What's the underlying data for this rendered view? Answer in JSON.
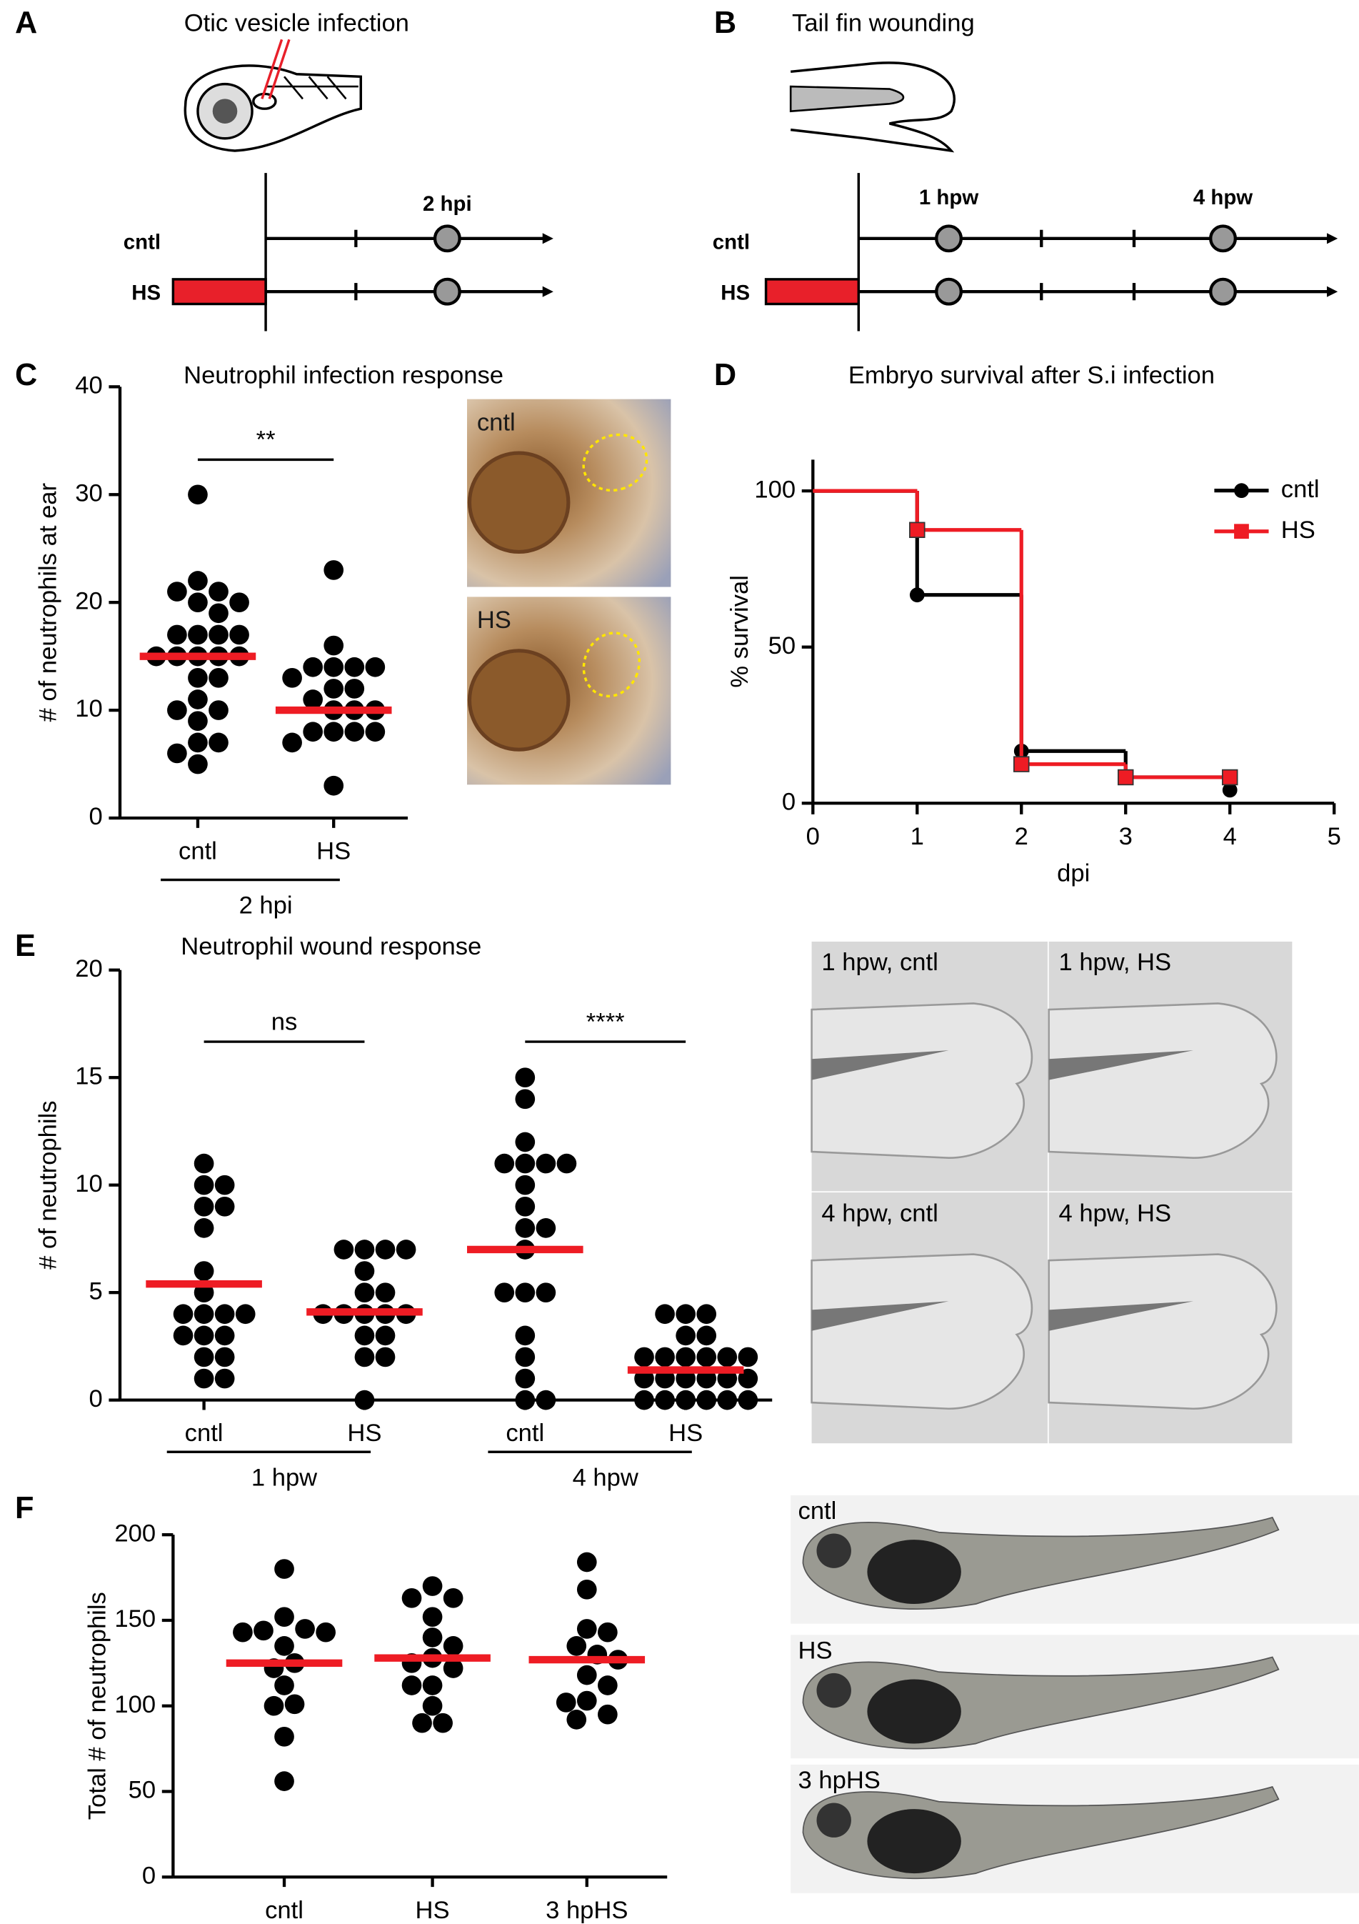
{
  "schematic_A": {
    "label": "A",
    "title": "Otic vesicle infection",
    "rows": [
      "cntl",
      "HS"
    ],
    "timepoints": [
      "2 hpi"
    ]
  },
  "schematic_B": {
    "label": "B",
    "title": "Tail fin wounding",
    "rows": [
      "cntl",
      "HS"
    ],
    "timepoints": [
      "1 hpw",
      "4 hpw"
    ]
  },
  "chart_data": [
    {
      "type": "dotplot",
      "panel": "C",
      "title": "Neutrophil infection response",
      "y_label": "# of neutrophils at ear",
      "categories": [
        "cntl",
        "HS"
      ],
      "values": [
        [
          30,
          22,
          21,
          21,
          20,
          20,
          19,
          17,
          17,
          17,
          17,
          15,
          15,
          15,
          15,
          15,
          13,
          13,
          11,
          10,
          10,
          9,
          7,
          7,
          6,
          5
        ],
        [
          23,
          16,
          14,
          14,
          14,
          14,
          13,
          12,
          12,
          11,
          10,
          10,
          10,
          8,
          8,
          8,
          8,
          7,
          3
        ]
      ],
      "means": [
        15,
        10
      ],
      "color": "#000000",
      "mean_color": "#ee1c24",
      "groups": [
        "2 hpi"
      ],
      "significance": [
        "**"
      ],
      "ylim": [
        0,
        40
      ],
      "yticks": [
        0,
        10,
        20,
        30,
        40
      ],
      "images": [
        "cntl",
        "HS"
      ]
    },
    {
      "type": "line",
      "step": true,
      "panel": "D",
      "title": "Embryo survival after S.i infection",
      "x_label": "dpi",
      "y_label": "% survival",
      "x": [
        0,
        1,
        2,
        3,
        4
      ],
      "series": [
        {
          "name": "cntl",
          "color": "#000000",
          "marker": "circle",
          "values": [
            100,
            66.7,
            16.7,
            8.3,
            4.2
          ]
        },
        {
          "name": "HS",
          "color": "#ee1c24",
          "marker": "square",
          "values": [
            100,
            87.5,
            12.5,
            8.3,
            8.3
          ]
        }
      ],
      "legend": "upper right",
      "xlim": [
        0,
        5
      ],
      "xticks": [
        0,
        1,
        2,
        3,
        4,
        5
      ],
      "ylim": [
        0,
        110
      ],
      "yticks": [
        0,
        50,
        100
      ]
    },
    {
      "type": "dotplot",
      "panel": "E",
      "title": "Neutrophil wound response",
      "y_label": "# of neutrophils",
      "categories": [
        "cntl",
        "HS",
        "cntl",
        "HS"
      ],
      "values": [
        [
          11,
          10,
          10,
          9,
          9,
          8,
          6,
          5,
          4,
          4,
          4,
          4,
          3,
          3,
          3,
          2,
          2,
          1,
          1
        ],
        [
          7,
          7,
          7,
          7,
          6,
          5,
          5,
          4,
          4,
          4,
          4,
          4,
          3,
          3,
          2,
          2,
          0
        ],
        [
          15,
          14,
          12,
          11,
          11,
          11,
          11,
          10,
          9,
          8,
          8,
          7,
          5,
          5,
          5,
          3,
          2,
          1,
          0,
          0
        ],
        [
          4,
          4,
          4,
          3,
          3,
          2,
          2,
          2,
          2,
          2,
          2,
          1,
          1,
          1,
          1,
          1,
          1,
          0,
          0,
          0,
          0,
          0,
          0
        ]
      ],
      "means": [
        5.4,
        4.1,
        7.0,
        1.4
      ],
      "color": "#000000",
      "mean_color": "#ee1c24",
      "groups": [
        "1 hpw",
        "4 hpw"
      ],
      "significance": [
        "ns",
        "****"
      ],
      "ylim": [
        0,
        20
      ],
      "yticks": [
        0,
        5,
        10,
        15,
        20
      ],
      "images": [
        "1 hpw, cntl",
        "1 hpw, HS",
        "4 hpw, cntl",
        "4 hpw, HS"
      ]
    },
    {
      "type": "dotplot",
      "panel": "F",
      "y_label": "Total # of neutrophils",
      "categories": [
        "cntl",
        "HS",
        "3 hpHS"
      ],
      "values": [
        [
          180,
          152,
          145,
          144,
          143,
          143,
          135,
          125,
          122,
          112,
          101,
          100,
          82,
          56
        ],
        [
          170,
          163,
          163,
          152,
          140,
          135,
          128,
          125,
          122,
          112,
          112,
          100,
          90,
          90
        ],
        [
          184,
          168,
          145,
          143,
          135,
          130,
          127,
          118,
          112,
          103,
          102,
          95,
          92
        ]
      ],
      "means": [
        125,
        128,
        127
      ],
      "color": "#000000",
      "mean_color": "#ee1c24",
      "ylim": [
        0,
        200
      ],
      "yticks": [
        0,
        50,
        100,
        150,
        200
      ],
      "images": [
        "cntl",
        "HS",
        "3 hpHS"
      ]
    }
  ]
}
